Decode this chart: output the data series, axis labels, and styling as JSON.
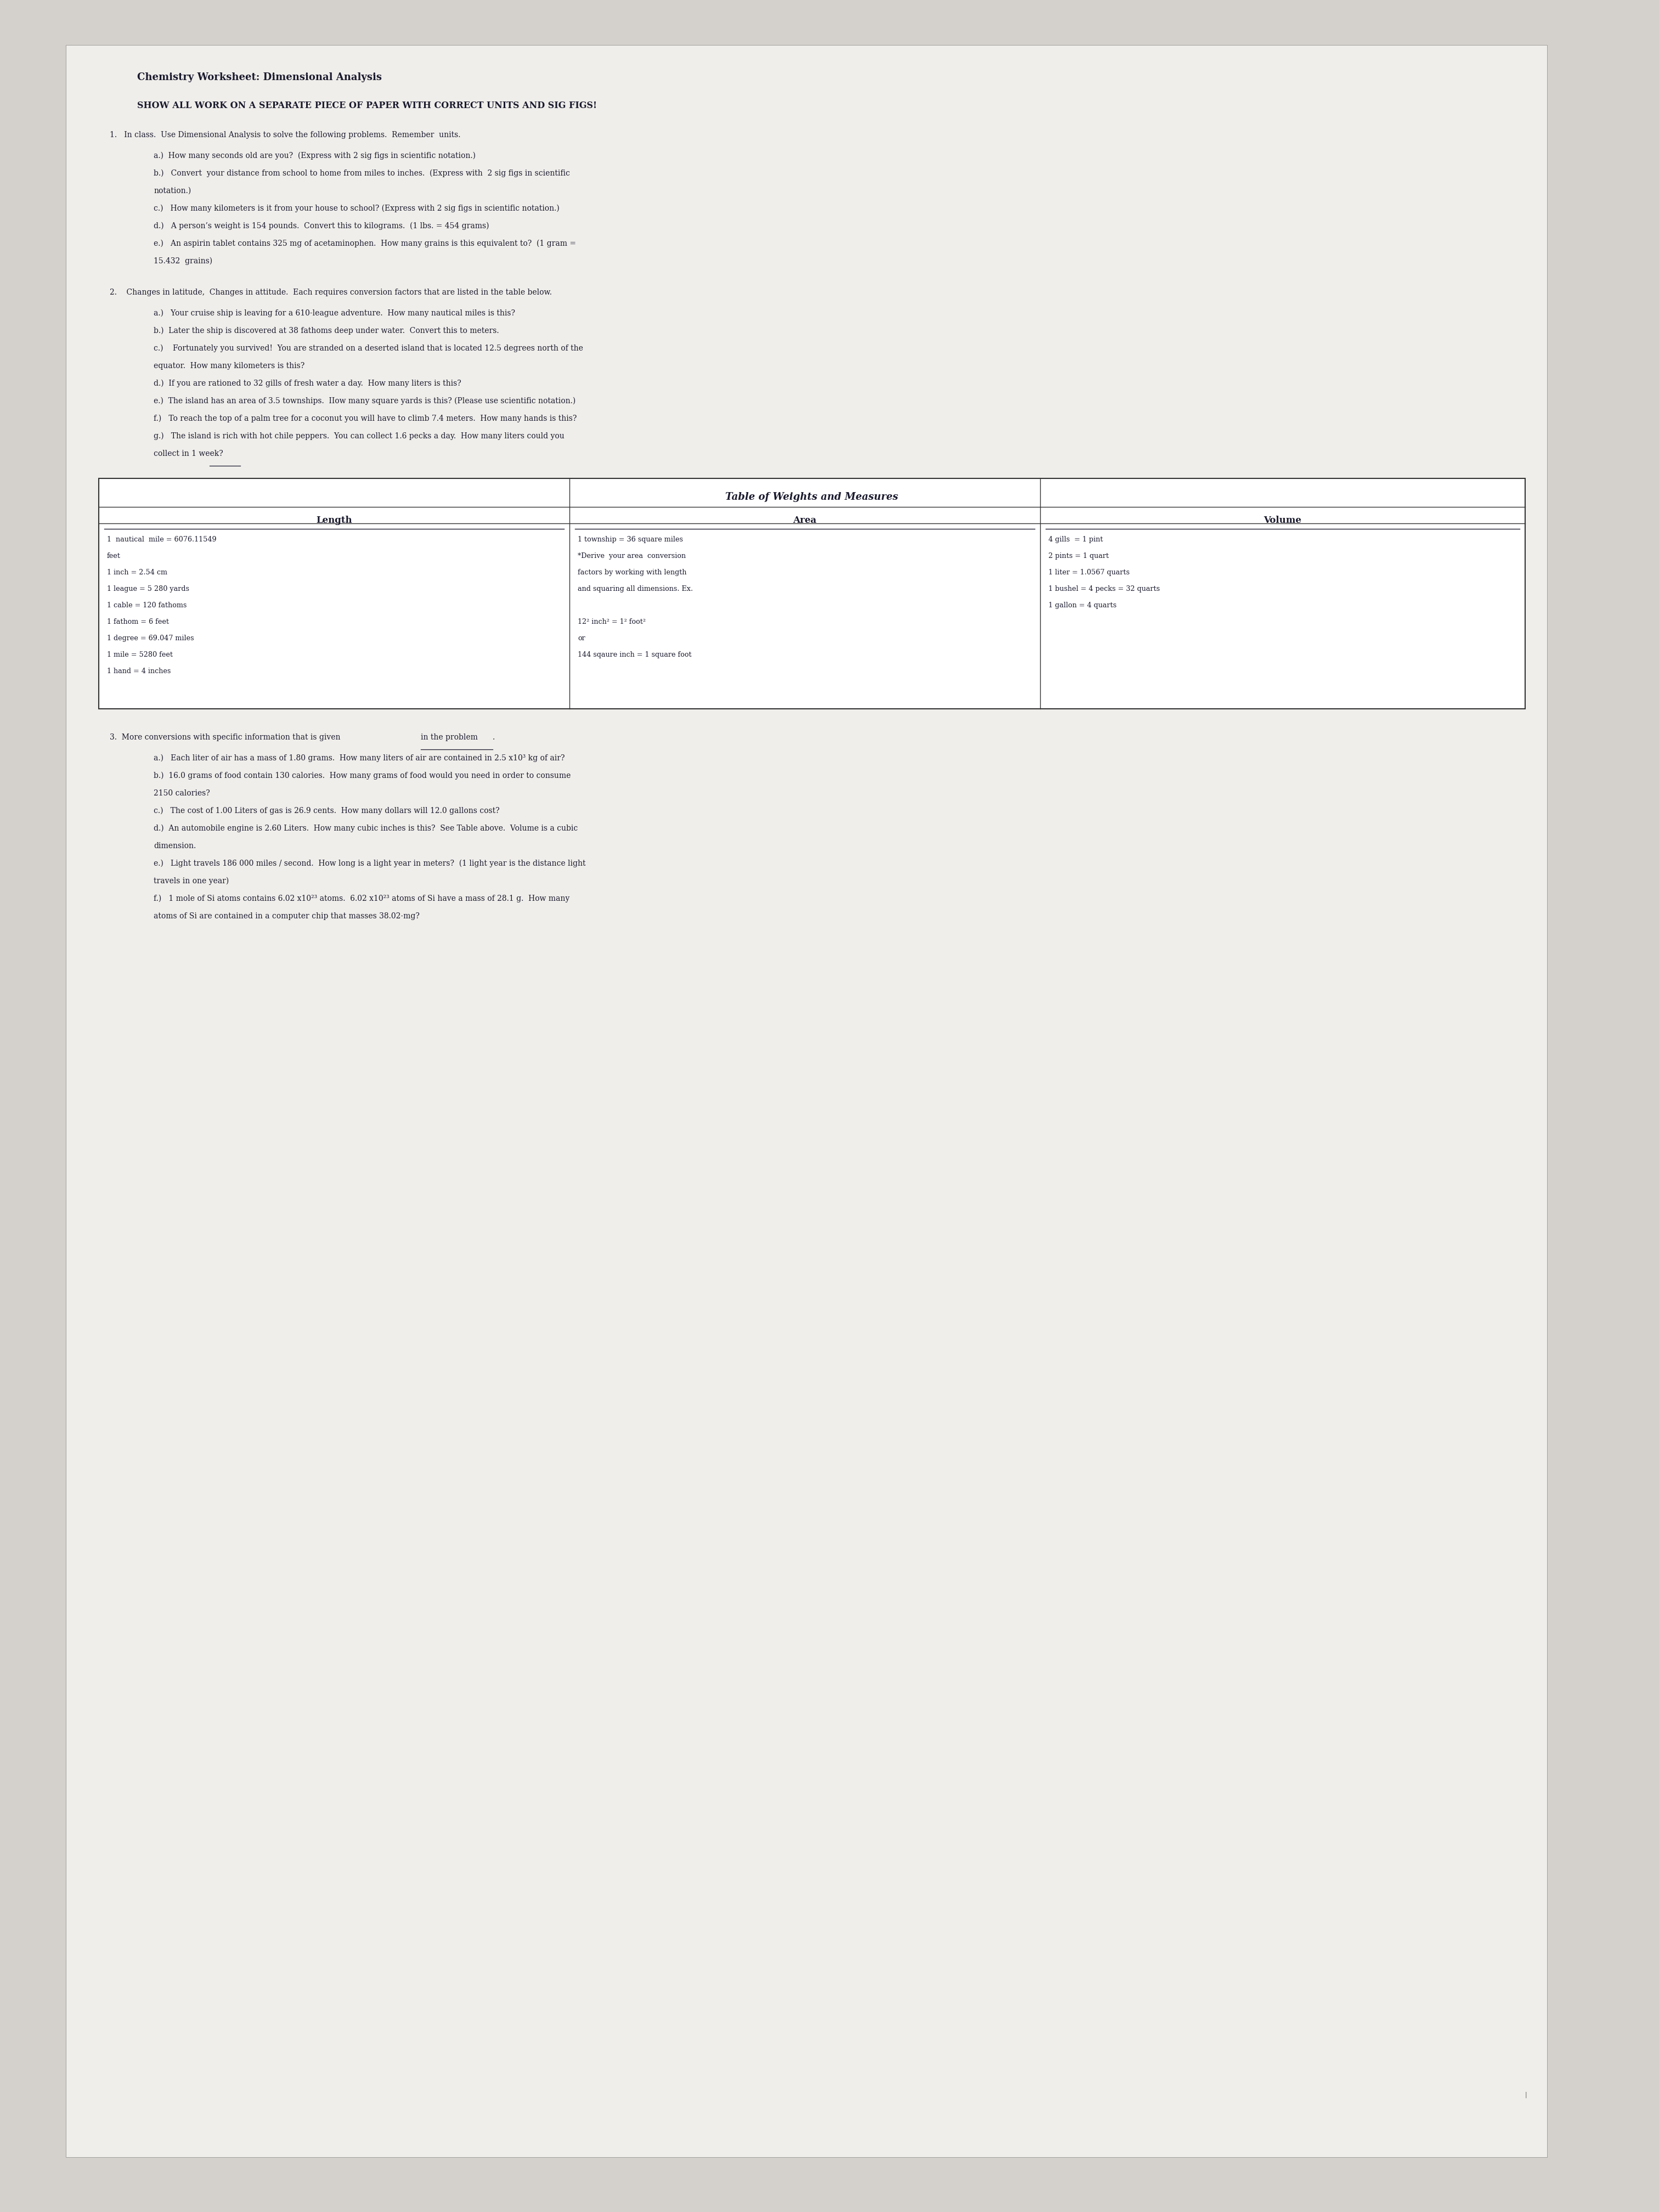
{
  "bg_color": "#d4d0cb",
  "paper_color": "#f0eeea",
  "title": "Chemistry Worksheet: Dimensional Analysis",
  "subtitle": "SHOW ALL WORK ON A SEPARATE PIECE OF PAPER WITH CORRECT UNITS AND SIG FIGS!",
  "section1_header": "1.   In class.  Use Dimensional Analysis to solve the following problems.  Remember  units.",
  "section1_items": [
    "a.)  How many seconds old are you?  (Express with 2 sig figs in scientific notation.)",
    "b.)   Convert  your distance from school to home from miles to inches.  (Express with  2 sig figs in scientific\n        notation.)",
    "c.)   How many kilometers is it from your house to school? (Express with 2 sig figs in scientific notation.)",
    "d.)   A person’s weight is 154 pounds.  Convert this to kilograms.  (1 lbs. = 454 grams)",
    "e.)   An aspirin tablet contains 325 mg of acetaminophen.  How many grains is this equivalent to?  (1 gram =\n        15.432  grains)"
  ],
  "section2_header": "2.    Changes in latitude,  Changes in attitude.  Each requires conversion factors that are listed in the table below.",
  "section2_items": [
    "a.)   Your cruise ship is leaving for a 610-league adventure.  How many nautical miles is this?",
    "b.)  Later the ship is discovered at 38 fathoms deep under water.  Convert this to meters.",
    "c.)    Fortunately you survived!  You are stranded on a deserted island that is located 12.5 degrees north of the\n         equator.  How many kilometers is this?",
    "d.)  If you are rationed to 32 gills of fresh water a day.  How many liters is this?",
    "e.)  The island has an area of 3.5 townships.  IIow many square yards is this? (Please use scientific notation.)",
    "f.)   To reach the top of a palm tree for a coconut you will have to climb 7.4 meters.  How many hands is this?",
    "g.)   The island is rich with hot chile peppers.  You can collect 1.6 pecks a day.  How many liters could you\n         collect in 1 week?"
  ],
  "table_title": "Table of Weights and Measures",
  "table_col_headers": [
    "Length",
    "Area",
    "Volume"
  ],
  "table_length": [
    "1  nautical  mile = 6076.11549",
    "feet",
    "1 inch = 2.54 cm",
    "1 league = 5 280 yards",
    "1 cable = 120 fathoms",
    "1 fathom = 6 feet",
    "1 degree = 69.047 miles",
    "1 mile = 5280 feet",
    "1 hand = 4 inches"
  ],
  "table_area": [
    "1 township = 36 square miles",
    "*Derive  your area  conversion",
    "factors by working with length",
    "and squaring all dimensions. Ex.",
    "",
    "12² inch² = 1² foot²",
    "or",
    "144 sqaure inch = 1 square foot"
  ],
  "table_volume": [
    "4 gills  = 1 pint",
    "2 pints = 1 quart",
    "1 liter = 1.0567 quarts",
    "1 bushel = 4 pecks = 32 quarts",
    "1 gallon = 4 quarts"
  ],
  "section3_header": "3.  More conversions with specific information that is given ",
  "section3_underline": "in the problem",
  "section3_items": [
    "a.)   Each liter of air has a mass of 1.80 grams.  How many liters of air are contained in 2.5 x10³ kg of air?",
    "b.)  16.0 grams of food contain 130 calories.  How many grams of food would you need in order to consume\n        2150 calories?",
    "c.)   The cost of 1.00 Liters of gas is 26.9 cents.  How many dollars will 12.0 gallons cost?",
    "d.)  An automobile engine is 2.60 Liters.  How many cubic inches is this?  See Table above.  Volume is a cubic\n        dimension.",
    "e.)   Light travels 186 000 miles / second.  How long is a light year in meters?  (1 light year is the distance light\n        travels in one year)",
    "f.)   1 mole of Si atoms contains 6.02 x10²³ atoms.  6.02 x10²³ atoms of Si have a mass of 28.1 g.  How many\n        atoms of Si are contained in a computer chip that masses 38.02-mg?"
  ]
}
